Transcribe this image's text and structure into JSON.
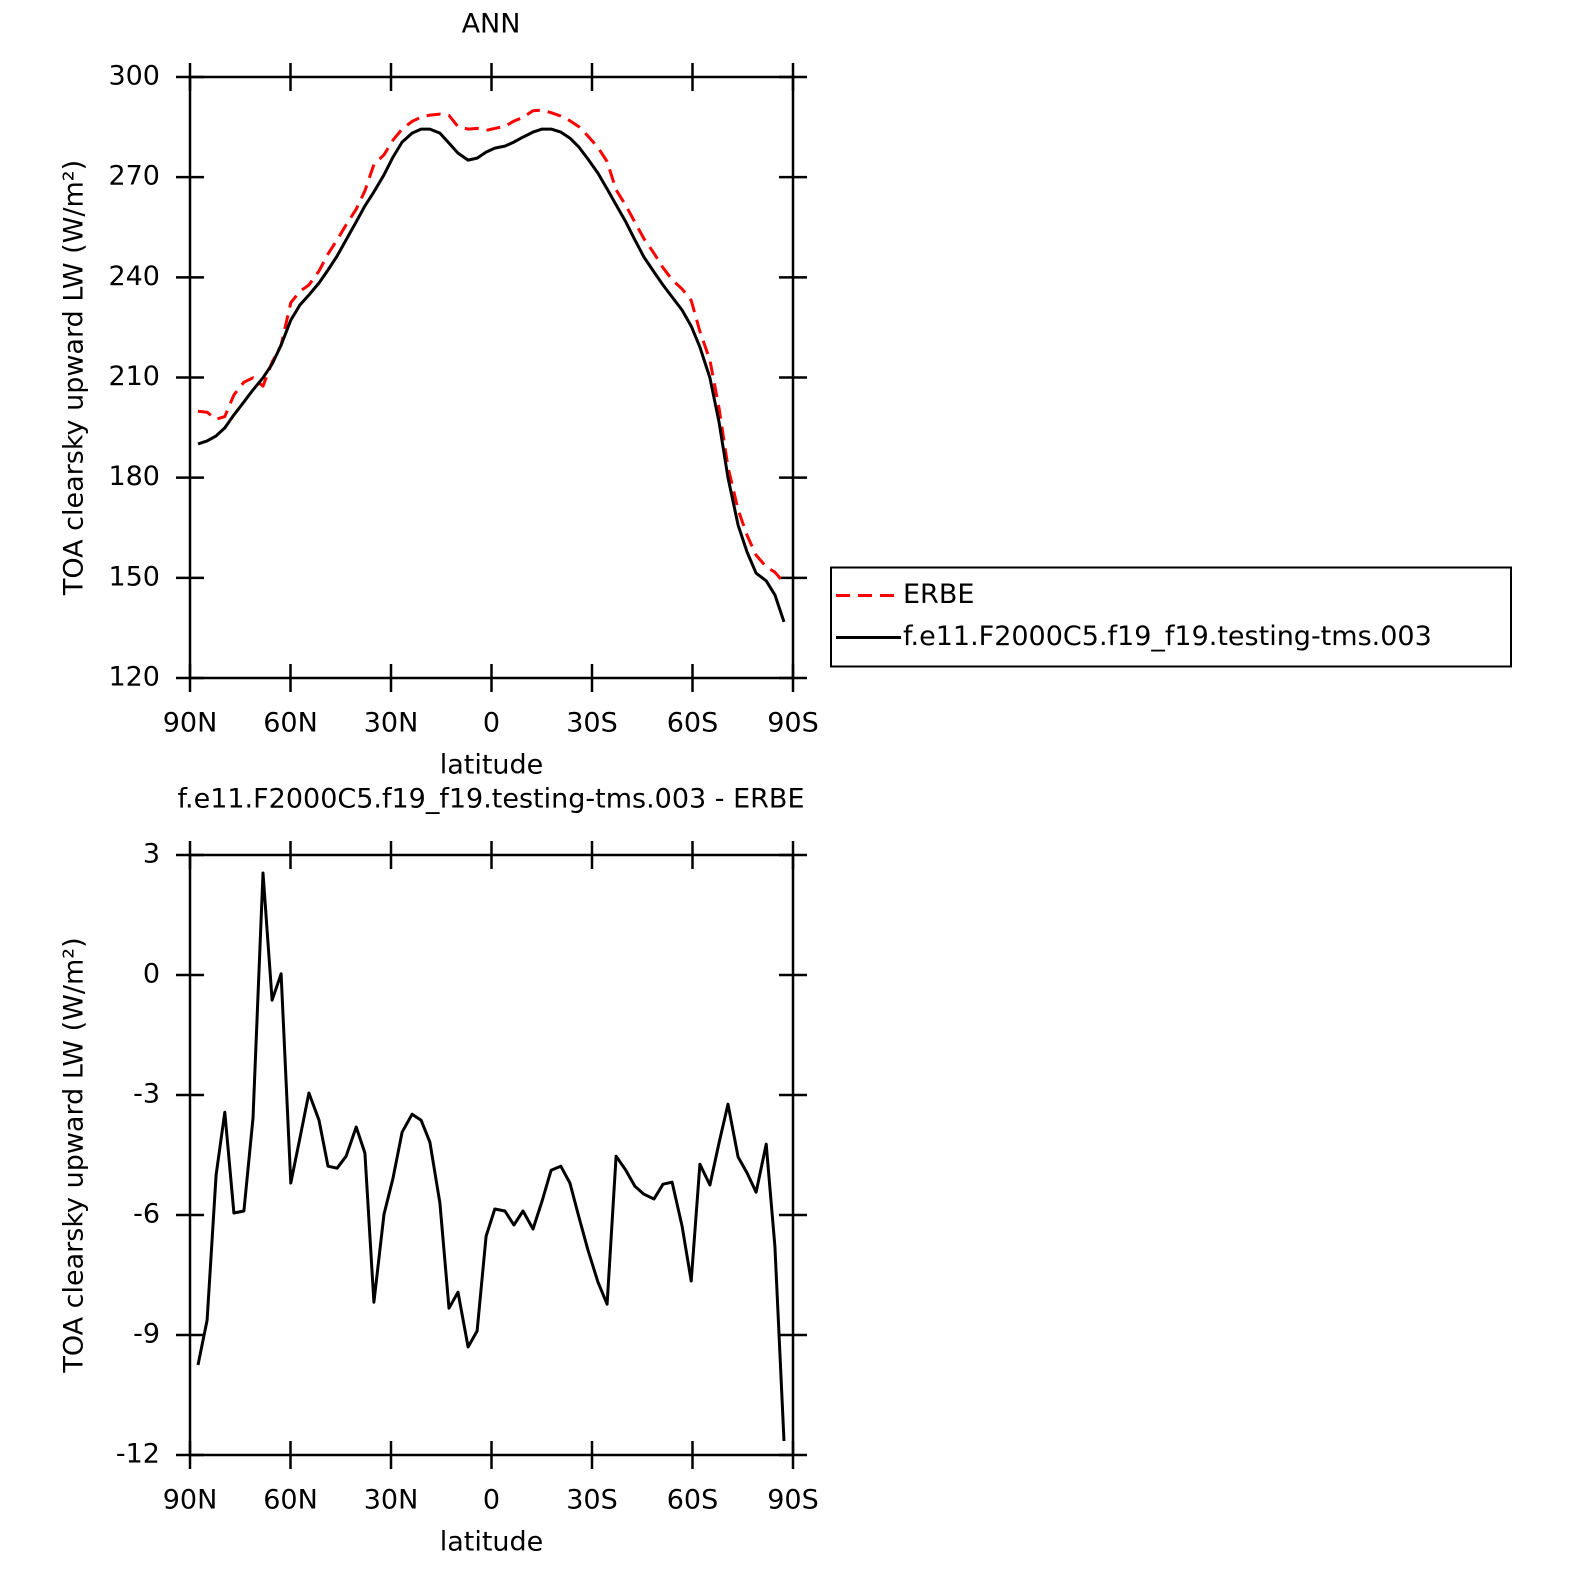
{
  "chart_data": [
    {
      "type": "line",
      "title": "ANN",
      "xlabel": "latitude",
      "ylabel": "TOA clearsky upward LW (W/m²)",
      "x": [
        87.6,
        84.9,
        82.2,
        79.6,
        76.9,
        73.9,
        71.2,
        68.2,
        65.5,
        62.8,
        59.9,
        57.2,
        54.5,
        51.5,
        48.8,
        46.1,
        43.4,
        40.4,
        37.8,
        35.1,
        32.1,
        29.4,
        26.7,
        23.7,
        21.0,
        18.4,
        15.4,
        12.7,
        10.0,
        7.0,
        4.3,
        1.6,
        -1.0,
        -4.0,
        -6.7,
        -9.4,
        -12.4,
        -15.1,
        -17.8,
        -20.7,
        -23.4,
        -26.1,
        -28.8,
        -31.8,
        -34.5,
        -37.2,
        -40.1,
        -42.8,
        -45.5,
        -48.5,
        -51.2,
        -53.9,
        -56.9,
        -59.6,
        -62.2,
        -65.2,
        -67.9,
        -70.6,
        -73.6,
        -76.3,
        -79.0,
        -82.0,
        -84.6,
        -87.3
      ],
      "series": [
        {
          "name": "ERBE",
          "color": "#ff0000",
          "dash": true,
          "values": [
            199.9,
            199.6,
            197.5,
            198.3,
            204.8,
            208.6,
            209.9,
            207.4,
            214.6,
            219.7,
            232.4,
            235.8,
            237.7,
            241.9,
            247.0,
            251.2,
            255.7,
            260.4,
            265.9,
            273.8,
            276.7,
            281.1,
            284.4,
            286.7,
            288.0,
            288.6,
            288.9,
            288.5,
            285.1,
            284.4,
            284.6,
            284.0,
            284.6,
            285.2,
            286.8,
            287.9,
            289.9,
            290.1,
            289.3,
            288.3,
            286.9,
            285.1,
            282.3,
            278.9,
            274.7,
            266.2,
            261.5,
            256.5,
            251.6,
            247.2,
            242.9,
            239.3,
            236.5,
            233.1,
            223.8,
            215.2,
            200.9,
            183.2,
            170.4,
            162.7,
            156.8,
            153.3,
            151.7,
            148.5
          ]
        },
        {
          "name": "f.e11.F2000C5.f19_f19.testing-tms.003",
          "color": "#000000",
          "dash": false,
          "values": [
            190.1,
            191.0,
            192.5,
            194.9,
            198.8,
            202.7,
            206.3,
            209.9,
            214.0,
            219.7,
            227.2,
            231.7,
            234.7,
            238.3,
            242.2,
            246.4,
            251.2,
            256.6,
            261.4,
            265.6,
            270.7,
            276.0,
            280.5,
            283.2,
            284.4,
            284.4,
            283.2,
            280.2,
            277.2,
            275.1,
            275.7,
            277.5,
            278.7,
            279.3,
            280.5,
            282.0,
            283.5,
            284.4,
            284.4,
            283.5,
            281.7,
            279.0,
            275.4,
            271.2,
            266.5,
            261.7,
            256.6,
            251.2,
            246.1,
            241.6,
            237.7,
            234.1,
            230.2,
            225.4,
            219.1,
            209.9,
            196.7,
            180.0,
            165.8,
            157.7,
            151.4,
            149.1,
            144.9,
            136.8
          ]
        }
      ],
      "xlim": [
        90,
        -90
      ],
      "xticks": [
        {
          "value": 90,
          "label": "90N"
        },
        {
          "value": 60,
          "label": "60N"
        },
        {
          "value": 30,
          "label": "30N"
        },
        0,
        {
          "value": -30,
          "label": "30S"
        },
        {
          "value": -60,
          "label": "60S"
        },
        {
          "value": -90,
          "label": "90S"
        }
      ],
      "ylim": [
        120,
        300
      ],
      "yticks": [
        120,
        150,
        180,
        210,
        240,
        270,
        300
      ],
      "grid": false,
      "legend": "right"
    },
    {
      "type": "line",
      "title": "f.e11.F2000C5.f19_f19.testing-tms.003 - ERBE",
      "xlabel": "latitude",
      "ylabel": "TOA clearsky upward LW (W/m²)",
      "x": [
        87.6,
        84.9,
        82.2,
        79.6,
        76.9,
        73.9,
        71.2,
        68.2,
        65.5,
        62.8,
        59.9,
        57.2,
        54.5,
        51.5,
        48.8,
        46.1,
        43.4,
        40.4,
        37.8,
        35.1,
        32.1,
        29.4,
        26.7,
        23.7,
        21.0,
        18.4,
        15.4,
        12.7,
        10.0,
        7.0,
        4.3,
        1.6,
        -1.0,
        -4.0,
        -6.7,
        -9.4,
        -12.4,
        -15.1,
        -17.8,
        -20.7,
        -23.4,
        -26.1,
        -28.8,
        -31.8,
        -34.5,
        -37.2,
        -40.1,
        -42.8,
        -45.5,
        -48.5,
        -51.2,
        -53.9,
        -56.9,
        -59.6,
        -62.2,
        -65.2,
        -67.9,
        -70.6,
        -73.6,
        -76.3,
        -79.0,
        -82.0,
        -84.6,
        -87.3
      ],
      "series": [
        {
          "color": "#000000",
          "dash": false,
          "values": [
            -9.75,
            -8.63,
            -5.0,
            -3.43,
            -5.95,
            -5.9,
            -3.58,
            2.55,
            -0.63,
            0.03,
            -5.2,
            -4.08,
            -2.95,
            -3.63,
            -4.78,
            -4.83,
            -4.53,
            -3.8,
            -4.45,
            -8.18,
            -5.98,
            -5.08,
            -3.93,
            -3.48,
            -3.63,
            -4.18,
            -5.7,
            -8.33,
            -7.93,
            -9.3,
            -8.9,
            -6.53,
            -5.85,
            -5.9,
            -6.25,
            -5.9,
            -6.35,
            -5.65,
            -4.88,
            -4.78,
            -5.2,
            -6.05,
            -6.88,
            -7.68,
            -8.23,
            -4.53,
            -4.88,
            -5.28,
            -5.48,
            -5.6,
            -5.23,
            -5.18,
            -6.28,
            -7.65,
            -4.73,
            -5.25,
            -4.2,
            -3.23,
            -4.55,
            -4.95,
            -5.43,
            -4.23,
            -6.78,
            -11.65
          ]
        }
      ],
      "xlim": [
        90,
        -90
      ],
      "xticks": [
        {
          "value": 90,
          "label": "90N"
        },
        {
          "value": 60,
          "label": "60N"
        },
        {
          "value": 30,
          "label": "30N"
        },
        0,
        {
          "value": -30,
          "label": "30S"
        },
        {
          "value": -60,
          "label": "60S"
        },
        {
          "value": -90,
          "label": "90S"
        }
      ],
      "ylim": [
        -12,
        3
      ],
      "yticks": [
        -12,
        -9,
        -6,
        -3,
        0,
        3
      ],
      "grid": false
    }
  ]
}
